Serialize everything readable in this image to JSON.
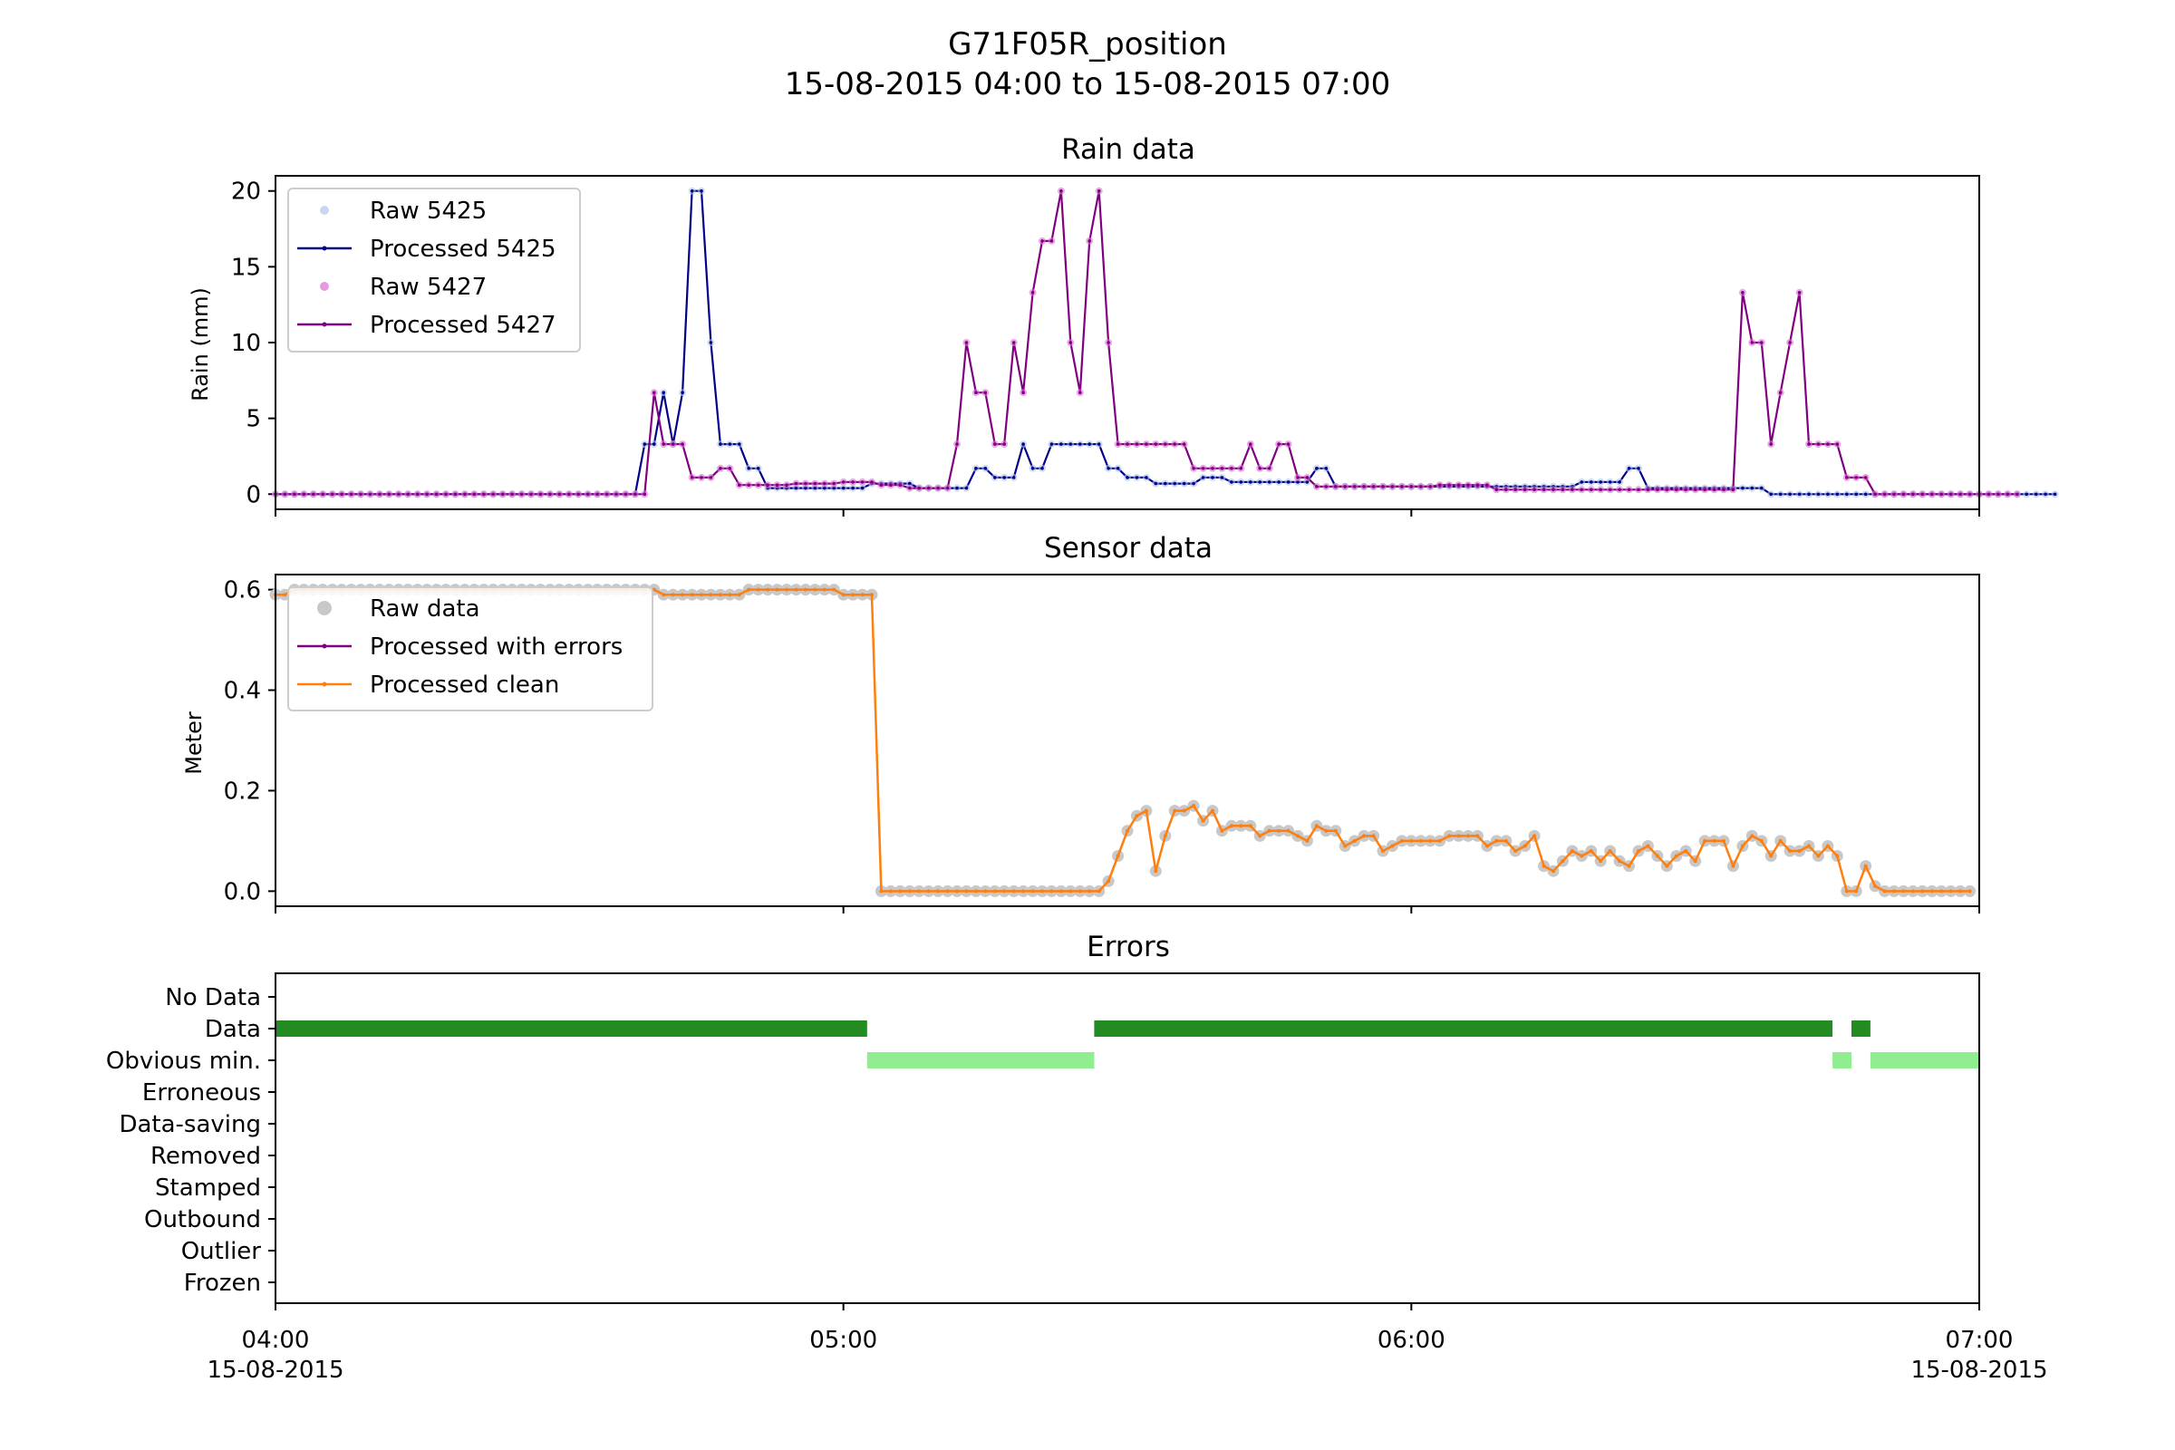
{
  "figure": {
    "title_line1": "G71F05R_position",
    "title_line2": "15-08-2015 04:00 to 15-08-2015 07:00"
  },
  "chart_data": [
    {
      "type": "line",
      "title": "Rain data",
      "ylabel": "Rain (mm)",
      "xlabel": "",
      "x_unit": "minutes after 15-08-2015 04:00",
      "xlim": [
        0,
        180
      ],
      "ylim": [
        -1,
        21
      ],
      "yticks": [
        0,
        5,
        10,
        15,
        20
      ],
      "xticks": [
        {
          "value": 0,
          "label": "04:00",
          "sublabel": "15-08-2015"
        },
        {
          "value": 60,
          "label": "05:00",
          "sublabel": ""
        },
        {
          "value": 120,
          "label": "06:00",
          "sublabel": ""
        },
        {
          "value": 180,
          "label": "07:00",
          "sublabel": "15-08-2015"
        }
      ],
      "legend_position": "upper-left",
      "step_minutes": 1,
      "series": [
        {
          "name": "Raw 5425",
          "style": "marker",
          "color": "#aec7e8",
          "ref": "s5425"
        },
        {
          "name": "Processed 5425",
          "style": "line",
          "color": "#00008b",
          "ref": "s5425"
        },
        {
          "name": "Raw 5427",
          "style": "marker",
          "color": "#da70d6",
          "ref": "s5427"
        },
        {
          "name": "Processed 5427",
          "style": "line",
          "color": "#800080",
          "ref": "s5427"
        }
      ],
      "values": {
        "s5425": [
          0,
          0,
          0,
          0,
          0,
          0,
          0,
          0,
          0,
          0,
          0,
          0,
          0,
          0,
          0,
          0,
          0,
          0,
          0,
          0,
          0,
          0,
          0,
          0,
          0,
          0,
          0,
          0,
          0,
          0,
          0,
          0,
          0,
          0,
          0,
          0,
          0,
          0,
          0,
          3.3,
          3.3,
          6.7,
          3.3,
          6.7,
          20,
          20,
          10,
          3.3,
          3.3,
          3.3,
          1.7,
          1.7,
          0.4,
          0.4,
          0.4,
          0.4,
          0.4,
          0.4,
          0.4,
          0.4,
          0.4,
          0.4,
          0.4,
          0.7,
          0.7,
          0.7,
          0.7,
          0.7,
          0.4,
          0.4,
          0.4,
          0.4,
          0.4,
          0.4,
          1.7,
          1.7,
          1.1,
          1.1,
          1.1,
          3.3,
          1.7,
          1.7,
          3.3,
          3.3,
          3.3,
          3.3,
          3.3,
          3.3,
          1.7,
          1.7,
          1.1,
          1.1,
          1.1,
          0.7,
          0.7,
          0.7,
          0.7,
          0.7,
          1.1,
          1.1,
          1.1,
          0.8,
          0.8,
          0.8,
          0.8,
          0.8,
          0.8,
          0.8,
          0.8,
          0.8,
          1.7,
          1.7,
          0.5,
          0.5,
          0.5,
          0.5,
          0.5,
          0.5,
          0.5,
          0.5,
          0.5,
          0.5,
          0.5,
          0.5,
          0.5,
          0.5,
          0.5,
          0.5,
          0.5,
          0.5,
          0.5,
          0.5,
          0.5,
          0.5,
          0.5,
          0.5,
          0.5,
          0.5,
          0.8,
          0.8,
          0.8,
          0.8,
          0.8,
          1.7,
          1.7,
          0.4,
          0.4,
          0.4,
          0.4,
          0.4,
          0.4,
          0.4,
          0.4,
          0.4,
          0.4,
          0.4,
          0.4,
          0.4,
          0,
          0,
          0,
          0,
          0,
          0,
          0,
          0,
          0,
          0,
          0,
          0,
          0,
          0,
          0,
          0,
          0,
          0,
          0,
          0,
          0,
          0,
          0,
          0,
          0,
          0,
          0,
          0,
          0,
          0,
          0
        ],
        "s5427": [
          0,
          0,
          0,
          0,
          0,
          0,
          0,
          0,
          0,
          0,
          0,
          0,
          0,
          0,
          0,
          0,
          0,
          0,
          0,
          0,
          0,
          0,
          0,
          0,
          0,
          0,
          0,
          0,
          0,
          0,
          0,
          0,
          0,
          0,
          0,
          0,
          0,
          0,
          0,
          0,
          6.7,
          3.3,
          3.3,
          3.3,
          1.1,
          1.1,
          1.1,
          1.7,
          1.7,
          0.6,
          0.6,
          0.6,
          0.6,
          0.6,
          0.6,
          0.7,
          0.7,
          0.7,
          0.7,
          0.7,
          0.8,
          0.8,
          0.8,
          0.8,
          0.6,
          0.6,
          0.6,
          0.4,
          0.4,
          0.4,
          0.4,
          0.4,
          3.3,
          10,
          6.7,
          6.7,
          3.3,
          3.3,
          10,
          6.7,
          13.3,
          16.7,
          16.7,
          20,
          10,
          6.7,
          16.7,
          20,
          10,
          3.3,
          3.3,
          3.3,
          3.3,
          3.3,
          3.3,
          3.3,
          3.3,
          1.7,
          1.7,
          1.7,
          1.7,
          1.7,
          1.7,
          3.3,
          1.7,
          1.7,
          3.3,
          3.3,
          1.1,
          1.1,
          0.5,
          0.5,
          0.5,
          0.5,
          0.5,
          0.5,
          0.5,
          0.5,
          0.5,
          0.5,
          0.5,
          0.5,
          0.5,
          0.6,
          0.6,
          0.6,
          0.6,
          0.6,
          0.6,
          0.3,
          0.3,
          0.3,
          0.3,
          0.3,
          0.3,
          0.3,
          0.3,
          0.3,
          0.3,
          0.3,
          0.3,
          0.3,
          0.3,
          0.3,
          0.3,
          0.3,
          0.3,
          0.3,
          0.3,
          0.3,
          0.3,
          0.3,
          0.3,
          0.3,
          0.3,
          13.3,
          10,
          10,
          3.3,
          6.7,
          10,
          13.3,
          3.3,
          3.3,
          3.3,
          3.3,
          1.1,
          1.1,
          1.1,
          0,
          0,
          0,
          0,
          0,
          0,
          0,
          0,
          0,
          0,
          0,
          0,
          0,
          0,
          0,
          0
        ]
      }
    },
    {
      "type": "line",
      "title": "Sensor data",
      "ylabel": "Meter",
      "xlabel": "",
      "x_unit": "minutes after 15-08-2015 04:00",
      "xlim": [
        0,
        180
      ],
      "ylim": [
        -0.03,
        0.63
      ],
      "yticks": [
        0.0,
        0.2,
        0.4,
        0.6
      ],
      "ytick_labels": [
        "0.0",
        "0.2",
        "0.4",
        "0.6"
      ],
      "legend_position": "upper-left",
      "step_minutes": 1,
      "series": [
        {
          "name": "Raw data",
          "style": "marker",
          "color": "#c8c8c8"
        },
        {
          "name": "Processed with errors",
          "style": "line",
          "color": "#800080"
        },
        {
          "name": "Processed clean",
          "style": "line",
          "color": "#ff7f0e"
        }
      ],
      "values": [
        0.59,
        0.59,
        0.6,
        0.6,
        0.6,
        0.6,
        0.6,
        0.6,
        0.6,
        0.6,
        0.6,
        0.6,
        0.6,
        0.6,
        0.6,
        0.6,
        0.6,
        0.6,
        0.6,
        0.6,
        0.6,
        0.6,
        0.6,
        0.6,
        0.6,
        0.6,
        0.6,
        0.6,
        0.6,
        0.6,
        0.6,
        0.6,
        0.6,
        0.6,
        0.6,
        0.6,
        0.6,
        0.6,
        0.6,
        0.6,
        0.6,
        0.59,
        0.59,
        0.59,
        0.59,
        0.59,
        0.59,
        0.59,
        0.59,
        0.59,
        0.6,
        0.6,
        0.6,
        0.6,
        0.6,
        0.6,
        0.6,
        0.6,
        0.6,
        0.6,
        0.59,
        0.59,
        0.59,
        0.59,
        0,
        0,
        0,
        0,
        0,
        0,
        0,
        0,
        0,
        0,
        0,
        0,
        0,
        0,
        0,
        0,
        0,
        0,
        0,
        0,
        0,
        0,
        0,
        0,
        0.02,
        0.07,
        0.12,
        0.15,
        0.16,
        0.04,
        0.11,
        0.16,
        0.16,
        0.17,
        0.14,
        0.16,
        0.12,
        0.13,
        0.13,
        0.13,
        0.11,
        0.12,
        0.12,
        0.12,
        0.11,
        0.1,
        0.13,
        0.12,
        0.12,
        0.09,
        0.1,
        0.11,
        0.11,
        0.08,
        0.09,
        0.1,
        0.1,
        0.1,
        0.1,
        0.1,
        0.11,
        0.11,
        0.11,
        0.11,
        0.09,
        0.1,
        0.1,
        0.08,
        0.09,
        0.11,
        0.05,
        0.04,
        0.06,
        0.08,
        0.07,
        0.08,
        0.06,
        0.08,
        0.06,
        0.05,
        0.08,
        0.09,
        0.07,
        0.05,
        0.07,
        0.08,
        0.06,
        0.1,
        0.1,
        0.1,
        0.05,
        0.09,
        0.11,
        0.1,
        0.07,
        0.1,
        0.08,
        0.08,
        0.09,
        0.07,
        0.09,
        0.07,
        0,
        0,
        0.05,
        0.01,
        0,
        0,
        0,
        0,
        0,
        0,
        0,
        0,
        0,
        0
      ]
    },
    {
      "type": "bar",
      "title": "Errors",
      "ylabel": "",
      "xlabel": "",
      "x_unit": "minutes after 15-08-2015 04:00",
      "xlim": [
        0,
        180
      ],
      "categories": [
        "No Data",
        "Data",
        "Obvious min.",
        "Erroneous",
        "Data-saving",
        "Removed",
        "Stamped",
        "Outbound",
        "Outlier",
        "Frozen"
      ],
      "segments": [
        {
          "category": "Data",
          "start": 0,
          "end": 62.5,
          "color": "#228b22"
        },
        {
          "category": "Obvious min.",
          "start": 62.5,
          "end": 86.5,
          "color": "#90ee90"
        },
        {
          "category": "Data",
          "start": 86.5,
          "end": 164.5,
          "color": "#228b22"
        },
        {
          "category": "Obvious min.",
          "start": 164.5,
          "end": 166.5,
          "color": "#90ee90"
        },
        {
          "category": "Data",
          "start": 166.5,
          "end": 168.5,
          "color": "#228b22"
        },
        {
          "category": "Obvious min.",
          "start": 168.5,
          "end": 180,
          "color": "#90ee90"
        }
      ]
    }
  ]
}
